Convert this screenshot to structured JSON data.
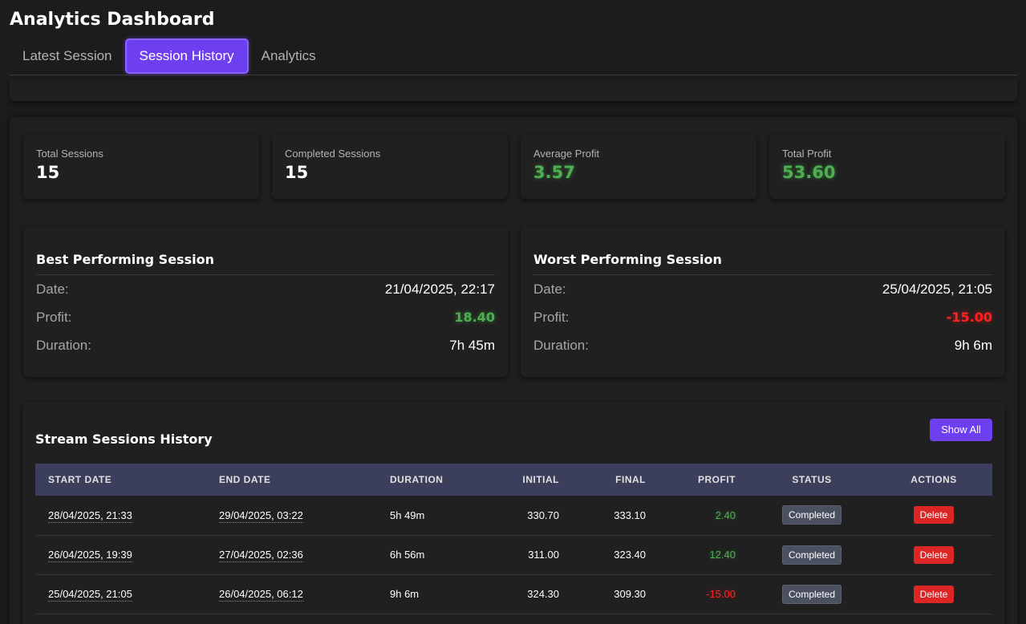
{
  "app": {
    "title": "Analytics Dashboard"
  },
  "tabs": [
    {
      "label": "Latest Session",
      "active": false
    },
    {
      "label": "Session History",
      "active": true
    },
    {
      "label": "Analytics",
      "active": false
    }
  ],
  "stats": [
    {
      "label": "Total Sessions",
      "value": "15",
      "color": "white"
    },
    {
      "label": "Completed Sessions",
      "value": "15",
      "color": "white"
    },
    {
      "label": "Average Profit",
      "value": "3.57",
      "color": "green"
    },
    {
      "label": "Total Profit",
      "value": "53.60",
      "color": "green"
    }
  ],
  "best": {
    "title": "Best Performing Session",
    "date_label": "Date:",
    "date": "21/04/2025, 22:17",
    "profit_label": "Profit:",
    "profit": "18.40",
    "duration_label": "Duration:",
    "duration": "7h 45m"
  },
  "worst": {
    "title": "Worst Performing Session",
    "date_label": "Date:",
    "date": "25/04/2025, 21:05",
    "profit_label": "Profit:",
    "profit": "-15.00",
    "duration_label": "Duration:",
    "duration": "9h 6m"
  },
  "history": {
    "title": "Stream Sessions History",
    "show_all_label": "Show All",
    "columns": [
      "START DATE",
      "END DATE",
      "DURATION",
      "INITIAL",
      "FINAL",
      "PROFIT",
      "STATUS",
      "ACTIONS"
    ],
    "rows": [
      {
        "start": "28/04/2025, 21:33",
        "end": "29/04/2025, 03:22",
        "duration": "5h 49m",
        "initial": "330.70",
        "final": "333.10",
        "profit": "2.40",
        "status": "Completed",
        "action": "Delete"
      },
      {
        "start": "26/04/2025, 19:39",
        "end": "27/04/2025, 02:36",
        "duration": "6h 56m",
        "initial": "311.00",
        "final": "323.40",
        "profit": "12.40",
        "status": "Completed",
        "action": "Delete"
      },
      {
        "start": "25/04/2025, 21:05",
        "end": "26/04/2025, 06:12",
        "duration": "9h 6m",
        "initial": "324.30",
        "final": "309.30",
        "profit": "-15.00",
        "status": "Completed",
        "action": "Delete"
      }
    ]
  },
  "colors": {
    "accent": "#6e3ff0",
    "positive": "#4caf50",
    "negative": "#ff2020",
    "table_header": "#3b3f5c",
    "delete": "#dc2626"
  }
}
